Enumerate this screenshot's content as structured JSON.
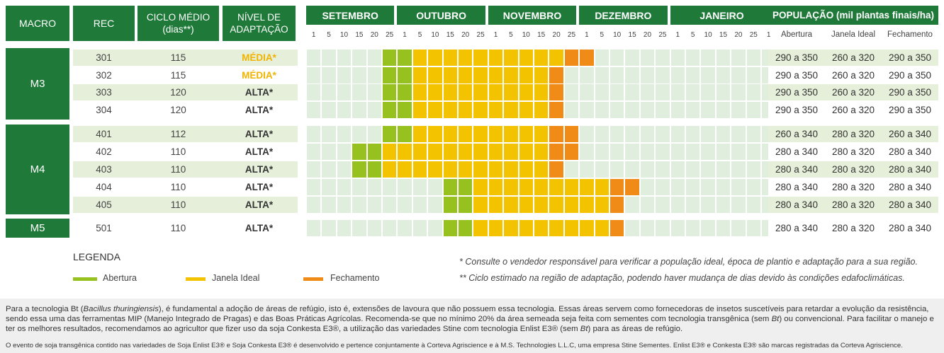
{
  "header": {
    "macro": "MACRO",
    "rec": "REC",
    "ciclo_line1": "CICLO MÉDIO",
    "ciclo_line2": "(dias**)",
    "nivel_line1": "NÍVEL DE",
    "nivel_line2": "ADAPTAÇÃO",
    "populacao": "POPULAÇÃO (mil plantas finais/ha)",
    "pop_cols": [
      "Abertura",
      "Janela Ideal",
      "Fechamento"
    ],
    "months": [
      "SETEMBRO",
      "OUTUBRO",
      "NOVEMBRO",
      "DEZEMBRO",
      "JANEIRO"
    ],
    "days": [
      "1",
      "5",
      "10",
      "15",
      "20",
      "25"
    ]
  },
  "colors": {
    "abertura": "#97c11f",
    "janela": "#f3c300",
    "fechamento": "#ef8b16",
    "empty": "#dfeedd",
    "header_green": "#1f7a3a",
    "media_text": "#f0b400",
    "alta_text": "#2e8b3a"
  },
  "macros": [
    {
      "name": "M3",
      "rows": [
        0,
        1,
        2,
        3
      ]
    },
    {
      "name": "M4",
      "rows": [
        4,
        5,
        6,
        7,
        8
      ]
    },
    {
      "name": "M5",
      "rows": [
        9
      ]
    }
  ],
  "rows": [
    {
      "rec": "301",
      "ciclo": "115",
      "nivel": "MÉDIA*",
      "level": "media",
      "schedule": [
        "empty",
        "empty",
        "empty",
        "empty",
        "empty",
        "abertura",
        "abertura",
        "janela",
        "janela",
        "janela",
        "janela",
        "janela",
        "janela",
        "janela",
        "janela",
        "janela",
        "janela",
        "fechamento",
        "fechamento",
        "empty",
        "empty",
        "empty",
        "empty",
        "empty",
        "empty",
        "empty",
        "empty",
        "empty",
        "empty",
        "empty",
        "empty"
      ],
      "pop": [
        "290 a 350",
        "260 a 320",
        "290 a 350"
      ]
    },
    {
      "rec": "302",
      "ciclo": "115",
      "nivel": "MÉDIA*",
      "level": "media",
      "schedule": [
        "empty",
        "empty",
        "empty",
        "empty",
        "empty",
        "abertura",
        "abertura",
        "janela",
        "janela",
        "janela",
        "janela",
        "janela",
        "janela",
        "janela",
        "janela",
        "janela",
        "fechamento",
        "empty",
        "empty",
        "empty",
        "empty",
        "empty",
        "empty",
        "empty",
        "empty",
        "empty",
        "empty",
        "empty",
        "empty",
        "empty",
        "empty"
      ],
      "pop": [
        "290 a 350",
        "260 a 320",
        "290 a 350"
      ]
    },
    {
      "rec": "303",
      "ciclo": "120",
      "nivel": "ALTA*",
      "level": "alta",
      "schedule": [
        "empty",
        "empty",
        "empty",
        "empty",
        "empty",
        "abertura",
        "abertura",
        "janela",
        "janela",
        "janela",
        "janela",
        "janela",
        "janela",
        "janela",
        "janela",
        "janela",
        "fechamento",
        "empty",
        "empty",
        "empty",
        "empty",
        "empty",
        "empty",
        "empty",
        "empty",
        "empty",
        "empty",
        "empty",
        "empty",
        "empty",
        "empty"
      ],
      "pop": [
        "290 a 350",
        "260 a 320",
        "290 a 350"
      ]
    },
    {
      "rec": "304",
      "ciclo": "120",
      "nivel": "ALTA*",
      "level": "alta",
      "schedule": [
        "empty",
        "empty",
        "empty",
        "empty",
        "empty",
        "abertura",
        "abertura",
        "janela",
        "janela",
        "janela",
        "janela",
        "janela",
        "janela",
        "janela",
        "janela",
        "janela",
        "fechamento",
        "empty",
        "empty",
        "empty",
        "empty",
        "empty",
        "empty",
        "empty",
        "empty",
        "empty",
        "empty",
        "empty",
        "empty",
        "empty",
        "empty"
      ],
      "pop": [
        "290 a 350",
        "260 a 320",
        "290 a 350"
      ]
    },
    {
      "rec": "401",
      "ciclo": "112",
      "nivel": "ALTA*",
      "level": "alta",
      "schedule": [
        "empty",
        "empty",
        "empty",
        "empty",
        "empty",
        "abertura",
        "abertura",
        "janela",
        "janela",
        "janela",
        "janela",
        "janela",
        "janela",
        "janela",
        "janela",
        "janela",
        "fechamento",
        "fechamento",
        "empty",
        "empty",
        "empty",
        "empty",
        "empty",
        "empty",
        "empty",
        "empty",
        "empty",
        "empty",
        "empty",
        "empty",
        "empty"
      ],
      "pop": [
        "260 a 340",
        "280 a 320",
        "260 a 340"
      ]
    },
    {
      "rec": "402",
      "ciclo": "110",
      "nivel": "ALTA*",
      "level": "alta",
      "schedule": [
        "empty",
        "empty",
        "empty",
        "abertura",
        "abertura",
        "janela",
        "janela",
        "janela",
        "janela",
        "janela",
        "janela",
        "janela",
        "janela",
        "janela",
        "janela",
        "janela",
        "fechamento",
        "fechamento",
        "empty",
        "empty",
        "empty",
        "empty",
        "empty",
        "empty",
        "empty",
        "empty",
        "empty",
        "empty",
        "empty",
        "empty",
        "empty"
      ],
      "pop": [
        "280 a 340",
        "280 a 320",
        "280 a 340"
      ]
    },
    {
      "rec": "403",
      "ciclo": "110",
      "nivel": "ALTA*",
      "level": "alta",
      "schedule": [
        "empty",
        "empty",
        "empty",
        "abertura",
        "abertura",
        "janela",
        "janela",
        "janela",
        "janela",
        "janela",
        "janela",
        "janela",
        "janela",
        "janela",
        "janela",
        "janela",
        "fechamento",
        "empty",
        "empty",
        "empty",
        "empty",
        "empty",
        "empty",
        "empty",
        "empty",
        "empty",
        "empty",
        "empty",
        "empty",
        "empty",
        "empty"
      ],
      "pop": [
        "280 a 340",
        "280 a 320",
        "280 a 340"
      ]
    },
    {
      "rec": "404",
      "ciclo": "110",
      "nivel": "ALTA*",
      "level": "alta",
      "schedule": [
        "empty",
        "empty",
        "empty",
        "empty",
        "empty",
        "empty",
        "empty",
        "empty",
        "empty",
        "abertura",
        "abertura",
        "janela",
        "janela",
        "janela",
        "janela",
        "janela",
        "janela",
        "janela",
        "janela",
        "janela",
        "fechamento",
        "fechamento",
        "empty",
        "empty",
        "empty",
        "empty",
        "empty",
        "empty",
        "empty",
        "empty",
        "empty"
      ],
      "pop": [
        "280 a 340",
        "280 a 320",
        "280 a 340"
      ]
    },
    {
      "rec": "405",
      "ciclo": "110",
      "nivel": "ALTA*",
      "level": "alta",
      "schedule": [
        "empty",
        "empty",
        "empty",
        "empty",
        "empty",
        "empty",
        "empty",
        "empty",
        "empty",
        "abertura",
        "abertura",
        "janela",
        "janela",
        "janela",
        "janela",
        "janela",
        "janela",
        "janela",
        "janela",
        "janela",
        "fechamento",
        "empty",
        "empty",
        "empty",
        "empty",
        "empty",
        "empty",
        "empty",
        "empty",
        "empty",
        "empty"
      ],
      "pop": [
        "280 a 340",
        "280 a 320",
        "280 a 340"
      ]
    },
    {
      "rec": "501",
      "ciclo": "110",
      "nivel": "ALTA*",
      "level": "alta",
      "schedule": [
        "empty",
        "empty",
        "empty",
        "empty",
        "empty",
        "empty",
        "empty",
        "empty",
        "empty",
        "abertura",
        "abertura",
        "janela",
        "janela",
        "janela",
        "janela",
        "janela",
        "janela",
        "janela",
        "janela",
        "janela",
        "fechamento",
        "empty",
        "empty",
        "empty",
        "empty",
        "empty",
        "empty",
        "empty",
        "empty",
        "empty",
        "empty"
      ],
      "pop": [
        "280 a 340",
        "280 a 320",
        "280 a 340"
      ]
    }
  ],
  "legend": {
    "title": "LEGENDA",
    "items": [
      "Abertura",
      "Janela Ideal",
      "Fechamento"
    ]
  },
  "footnotes": [
    "* Consulte o vendedor responsável para verificar a população ideal, época de plantio e adaptação para a sua região.",
    "** Ciclo estimado na região de adaptação, podendo haver mudança de  dias devido às condições edafoclimáticas."
  ],
  "info": {
    "p1_a": "Para a tecnologia Bt (",
    "p1_species": "Bacillus thuringiensis",
    "p1_b": "), é fundamental a adoção de áreas de refúgio, isto é, extensões de lavoura que não possuem essa tecnologia. Essas áreas servem como fornecedoras de insetos suscetíveis para retardar a evolução da resistência, sendo essa uma das ferramentas MIP (Manejo Integrado de Pragas) e das Boas Práticas Agrícolas. Recomenda-se que no mínimo 20% da área semeada seja feita com sementes com tecnologia transgênica (sem ",
    "bt": "Bt",
    "p1_c": ") ou convencional. Para facilitar o manejo e ter os melhores resultados, recomendamos ao agricultor que fizer uso da soja Conkesta E3®, a utilização das variedades Stine com tecnologia Enlist E3® (sem ",
    "p1_d": ") para as áreas de refúgio.",
    "disclaimer": "O evento de soja transgênica contido nas variedades de Soja Enlist E3® e Soja Conkesta E3® é desenvolvido e pertence conjuntamente à Corteva Agriscience e à M.S. Technologies L.L.C, uma empresa Stine Sementes. Enlist E3® e Conkesta E3® são marcas registradas da Corteva Agriscience."
  }
}
